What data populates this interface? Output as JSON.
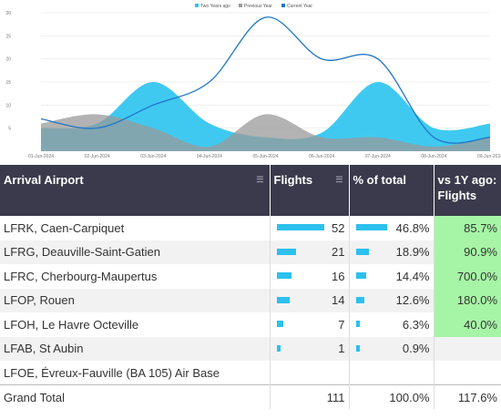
{
  "chart": {
    "legend": [
      {
        "label": "Two Years ago",
        "color": "#2fc4f0"
      },
      {
        "label": "Previous Year",
        "color": "#9a9a9a"
      },
      {
        "label": "Current Year",
        "color": "#1f76c7"
      }
    ],
    "y_ticks": [
      "30",
      "25",
      "20",
      "15",
      "10",
      "5"
    ],
    "x_ticks": [
      "01-Jun-2024",
      "02-Jun-2024",
      "03-Jun-2024",
      "04-Jun-2024",
      "05-Jun-2024",
      "06-Jun-2024",
      "07-Jun-2024",
      "08-Jun-2024",
      "09-Jun-2024"
    ]
  },
  "chart_data": {
    "type": "area",
    "categories": [
      "01-Jun-2024",
      "02-Jun-2024",
      "03-Jun-2024",
      "04-Jun-2024",
      "05-Jun-2024",
      "06-Jun-2024",
      "07-Jun-2024",
      "08-Jun-2024",
      "09-Jun-2024"
    ],
    "series": [
      {
        "name": "Two Years ago",
        "values": [
          5,
          6,
          15,
          6,
          3,
          4,
          15,
          5,
          6
        ]
      },
      {
        "name": "Previous Year",
        "values": [
          6,
          8,
          5,
          1,
          8,
          3,
          3,
          1,
          3
        ]
      },
      {
        "name": "Current Year",
        "values": [
          7,
          5,
          10,
          15,
          29,
          20,
          20,
          3,
          3
        ]
      }
    ],
    "ylim": [
      0,
      30
    ],
    "grid": true,
    "legend": "top-center"
  },
  "table": {
    "headers": {
      "airport": "Arrival Airport",
      "flights": "Flights",
      "pct": "% of total",
      "vs1y": "vs 1Y ago: Flights"
    },
    "rows": [
      {
        "airport": "LFRK, Caen-Carpiquet",
        "flights": "52",
        "pct": "46.8%",
        "vs": "85.7%",
        "flights_frac": 1.0,
        "pct_frac": 1.0,
        "green": true
      },
      {
        "airport": "LFRG, Deauville-Saint-Gatien",
        "flights": "21",
        "pct": "18.9%",
        "vs": "90.9%",
        "flights_frac": 0.4,
        "pct_frac": 0.4,
        "green": true
      },
      {
        "airport": "LFRC, Cherbourg-Maupertus",
        "flights": "16",
        "pct": "14.4%",
        "vs": "700.0%",
        "flights_frac": 0.31,
        "pct_frac": 0.31,
        "green": true
      },
      {
        "airport": "LFOP, Rouen",
        "flights": "14",
        "pct": "12.6%",
        "vs": "180.0%",
        "flights_frac": 0.27,
        "pct_frac": 0.27,
        "green": true
      },
      {
        "airport": "LFOH, Le Havre Octeville",
        "flights": "7",
        "pct": "6.3%",
        "vs": "40.0%",
        "flights_frac": 0.13,
        "pct_frac": 0.13,
        "green": true
      },
      {
        "airport": "LFAB, St Aubin",
        "flights": "1",
        "pct": "0.9%",
        "vs": "",
        "flights_frac": 0.02,
        "pct_frac": 0.02,
        "green": false
      },
      {
        "airport": "LFOE, Évreux-Fauville (BA 105) Air Base",
        "flights": "",
        "pct": "",
        "vs": "",
        "flights_frac": 0,
        "pct_frac": 0,
        "green": false
      }
    ],
    "total": {
      "label": "Grand Total",
      "flights": "111",
      "pct": "100.0%",
      "vs": "117.6%"
    }
  }
}
